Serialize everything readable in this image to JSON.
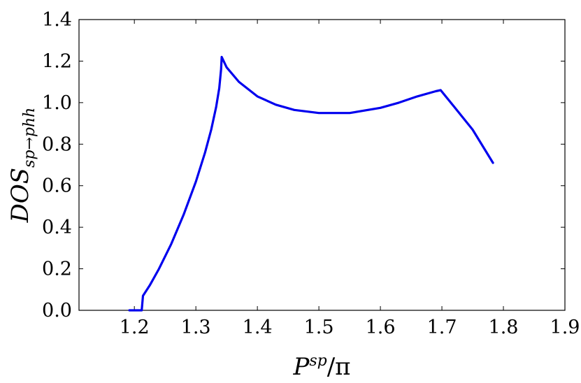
{
  "chart_data": {
    "type": "line",
    "title": "",
    "xlabel": "P^sp/π",
    "xlabel_parts": {
      "base": "P",
      "sup": "sp",
      "rest": "/π"
    },
    "ylabel": "DOS_sp→phh",
    "ylabel_parts": {
      "base": "DOS",
      "sub": "sp→phh"
    },
    "xlim": [
      1.11,
      1.9
    ],
    "ylim": [
      0.0,
      1.4
    ],
    "xticks": [
      1.2,
      1.3,
      1.4,
      1.5,
      1.6,
      1.7,
      1.8,
      1.9
    ],
    "xtick_labels": [
      "1.2",
      "1.3",
      "1.4",
      "1.5",
      "1.6",
      "1.7",
      "1.8",
      "1.9"
    ],
    "yticks": [
      0.0,
      0.2,
      0.4,
      0.6,
      0.8,
      1.0,
      1.2,
      1.4
    ],
    "ytick_labels": [
      "0.0",
      "0.2",
      "0.4",
      "0.6",
      "0.8",
      "1.0",
      "1.2",
      "1.4"
    ],
    "grid": false,
    "color": "#0000ee",
    "series": [
      {
        "x": [
          1.192,
          1.205,
          1.212,
          1.214,
          1.225,
          1.24,
          1.26,
          1.28,
          1.3,
          1.315,
          1.325,
          1.333,
          1.338,
          1.341,
          1.342,
          1.35,
          1.37,
          1.4,
          1.43,
          1.46,
          1.5,
          1.55,
          1.6,
          1.63,
          1.66,
          1.69,
          1.698,
          1.72,
          1.75,
          1.783
        ],
        "y": [
          0.0,
          0.0,
          0.0,
          0.07,
          0.12,
          0.2,
          0.32,
          0.46,
          0.62,
          0.76,
          0.87,
          0.98,
          1.07,
          1.16,
          1.22,
          1.17,
          1.1,
          1.03,
          0.99,
          0.965,
          0.95,
          0.95,
          0.975,
          1.0,
          1.03,
          1.055,
          1.06,
          0.98,
          0.87,
          0.71
        ]
      }
    ]
  }
}
